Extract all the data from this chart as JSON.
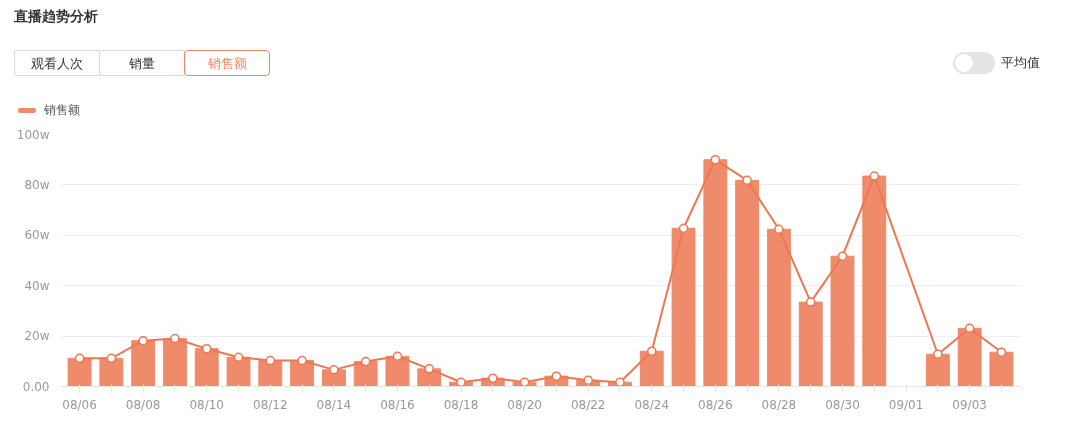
{
  "chart_data": {
    "type": "bar",
    "title": "直播趋势分析",
    "annotations": [
      "观看人次",
      "销量",
      "销售额",
      "平均值"
    ],
    "categories": [
      "08/06",
      null,
      "08/08",
      null,
      "08/10",
      null,
      "08/12",
      null,
      "08/14",
      null,
      "08/16",
      null,
      "08/18",
      null,
      "08/20",
      null,
      "08/22",
      null,
      "08/24",
      null,
      "08/26",
      null,
      "08/28",
      null,
      "08/30",
      null,
      "09/01",
      null,
      "09/03",
      null
    ],
    "series": [
      {
        "name": "销售额",
        "color": "#ef8a6a",
        "values": [
          11.2,
          11.2,
          18.2,
          19,
          15,
          11.6,
          10.3,
          10.3,
          6.6,
          9.9,
          12,
          7,
          1.7,
          3.3,
          1.7,
          4.1,
          2.5,
          1.7,
          14,
          62.8,
          90,
          81.8,
          62.4,
          33.5,
          51.7,
          83.5,
          null,
          12.8,
          23.1,
          13.6
        ]
      },
      {
        "type": "line",
        "color": "#ee7752",
        "values": [
          11.2,
          11.2,
          18.2,
          19,
          15,
          11.6,
          10.3,
          10.3,
          6.6,
          9.9,
          12,
          7,
          1.7,
          3.3,
          1.7,
          4.1,
          2.5,
          1.7,
          14,
          62.8,
          90,
          81.8,
          62.4,
          33.5,
          51.7,
          83.5,
          null,
          12.8,
          23.1,
          13.6
        ]
      }
    ],
    "ylim": [
      0,
      100
    ],
    "yticks": [
      {
        "value": 0,
        "label": "0.00"
      },
      {
        "value": 20,
        "label": "20w"
      },
      {
        "value": 40,
        "label": "40w"
      },
      {
        "value": 60,
        "label": "60w"
      },
      {
        "value": 80,
        "label": "80w"
      },
      {
        "value": 100,
        "label": "100w"
      }
    ],
    "grid": "y",
    "legend": "top left",
    "marker": "circle",
    "line_style": "solid"
  }
}
